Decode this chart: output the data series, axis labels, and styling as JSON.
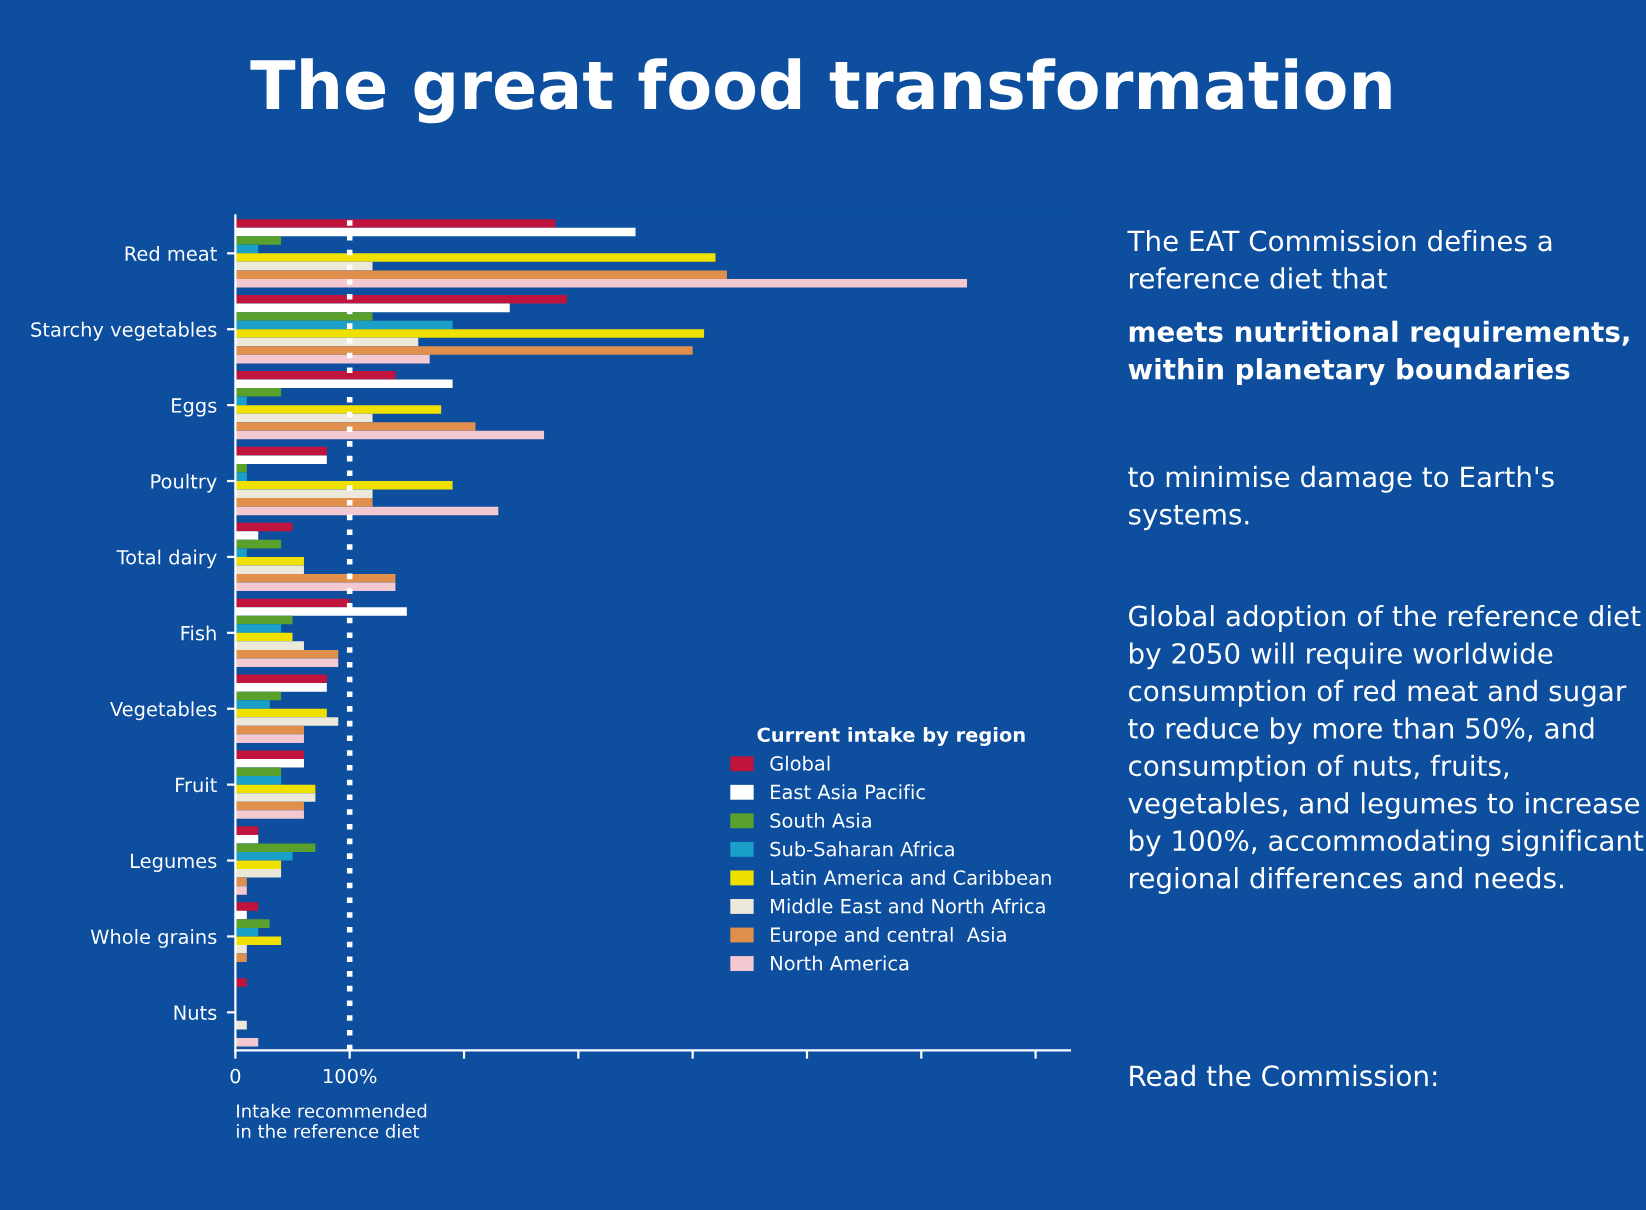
{
  "chart_data": {
    "type": "bar",
    "orientation": "horizontal",
    "title": "The great food transformation",
    "categories": [
      "Red meat",
      "Starchy vegetables",
      "Eggs",
      "Poultry",
      "Total dairy",
      "Fish",
      "Vegetables",
      "Fruit",
      "Legumes",
      "Whole grains",
      "Nuts"
    ],
    "series": [
      {
        "name": "Global",
        "color": "#c0143c",
        "values": [
          280,
          290,
          140,
          80,
          50,
          100,
          80,
          60,
          20,
          20,
          10
        ]
      },
      {
        "name": "East Asia Pacific",
        "color": "#ffffff",
        "values": [
          350,
          240,
          190,
          80,
          20,
          150,
          80,
          60,
          20,
          10,
          0
        ]
      },
      {
        "name": "South Asia",
        "color": "#5aa02c",
        "values": [
          40,
          120,
          40,
          10,
          40,
          50,
          40,
          40,
          70,
          30,
          0
        ]
      },
      {
        "name": "Sub-Saharan Africa",
        "color": "#1aa0c8",
        "values": [
          20,
          190,
          10,
          10,
          10,
          40,
          30,
          40,
          50,
          20,
          0
        ]
      },
      {
        "name": "Latin America and Caribbean",
        "color": "#f0e000",
        "values": [
          420,
          410,
          180,
          190,
          60,
          50,
          80,
          70,
          40,
          40,
          0
        ]
      },
      {
        "name": "Middle East and North Africa",
        "color": "#ece8da",
        "values": [
          120,
          160,
          120,
          120,
          60,
          60,
          90,
          70,
          40,
          10,
          10
        ]
      },
      {
        "name": "Europe and central  Asia",
        "color": "#e0904c",
        "values": [
          430,
          400,
          210,
          120,
          140,
          90,
          60,
          60,
          10,
          10,
          0
        ]
      },
      {
        "name": "North America",
        "color": "#f4c8d0",
        "values": [
          640,
          170,
          270,
          230,
          140,
          90,
          60,
          60,
          10,
          0,
          20
        ]
      }
    ],
    "xlim": [
      0,
      730
    ],
    "xticks": [
      0,
      {
        "value": 100,
        "label": "100%"
      },
      {
        "value": 200,
        "label": null
      },
      {
        "value": 300,
        "label": null
      },
      {
        "value": 400,
        "label": null
      },
      {
        "value": 500,
        "label": null
      },
      {
        "value": 600,
        "label": null
      },
      {
        "value": 700,
        "label": null
      }
    ],
    "ref_lines": [
      {
        "axis": "x",
        "value": 100,
        "color": "#ffffff",
        "line_style": "dotted"
      }
    ],
    "xlabel": "Intake recommended\nin the reference diet",
    "legend_title": "Current intake by region",
    "legend": "lower right",
    "grid": false,
    "annotations": [
      "The EAT Commission defines a reference diet that",
      "meets nutritional requirements, within planetary boundaries",
      "to minimise damage to Earth's systems.",
      "Global adoption of the reference diet by 2050 will require worldwide consumption of red meat and sugar to reduce by more than 50%, and consumption of nuts, fruits, vegetables, and legumes to increase by 100%, accommodating significant regional differences and needs.",
      "Read the Commission:"
    ]
  }
}
